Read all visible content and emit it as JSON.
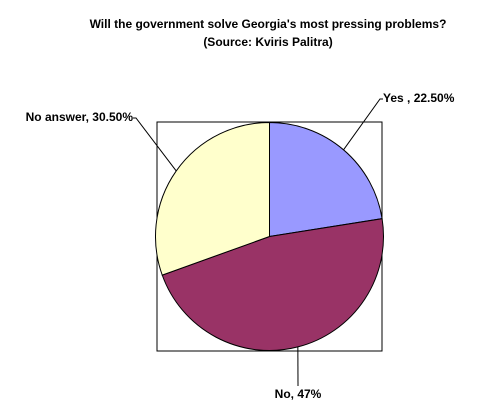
{
  "chart_data": {
    "type": "pie",
    "title": "Will the government solve Georgia's most pressing problems?",
    "subtitle": "(Source: Kviris Palitra)",
    "values": [
      22.5,
      47,
      30.5
    ],
    "value_labels": [
      "Yes , 22.50%",
      "No, 47%",
      "No answer, 30.50%"
    ],
    "colors": [
      "#9999ff",
      "#993366",
      "#ffffcc"
    ]
  }
}
